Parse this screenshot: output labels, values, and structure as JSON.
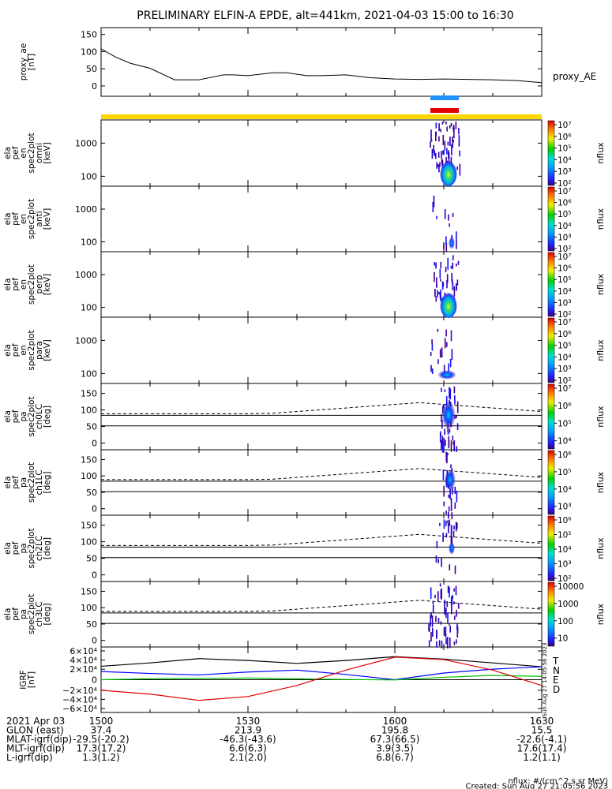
{
  "title": "PRELIMINARY ELFIN-A EPDE, alt=441km, 2021-04-03 15:00 to 16:30",
  "colors": {
    "yellow_bar": "#ffd700",
    "blue_bar": "#1e90ff",
    "red_bar": "#e00000",
    "bx": "#000000",
    "by": "#0000ff",
    "bz": "#00c000",
    "bd": "#e00000"
  },
  "chart_data": [
    {
      "type": "line",
      "ylabel": [
        "proxy_ae",
        "[nT]"
      ],
      "yticks": [
        "150",
        "100",
        "50",
        "0"
      ],
      "ylim": [
        0,
        150
      ],
      "series_name": "proxy_AE",
      "x_minutes": [
        0,
        3,
        6,
        10,
        15,
        20,
        25,
        27,
        30,
        35,
        38,
        42,
        45,
        50,
        55,
        60,
        65,
        70,
        75,
        80,
        85,
        90
      ],
      "values": [
        115,
        95,
        80,
        68,
        40,
        40,
        52,
        52,
        50,
        57,
        57,
        50,
        50,
        52,
        45,
        42,
        41,
        42,
        41,
        40,
        38,
        33
      ]
    },
    {
      "type": "heatmap",
      "ylabel": [
        "ela",
        "pef",
        "en",
        "spec2plot",
        "omni",
        "[keV]"
      ],
      "yticks": [
        "1000",
        "100"
      ],
      "cbar_label": "nflux",
      "cbar_ticks": [
        "10⁷",
        "10⁶",
        "10⁵",
        "10⁴",
        "10³",
        "10²"
      ]
    },
    {
      "type": "heatmap",
      "ylabel": [
        "ela",
        "pef",
        "en",
        "spec2plot",
        "anti",
        "[keV]"
      ],
      "yticks": [
        "1000",
        "100"
      ],
      "cbar_label": "nflux",
      "cbar_ticks": [
        "10⁷",
        "10⁶",
        "10⁵",
        "10⁴",
        "10³",
        "10²"
      ]
    },
    {
      "type": "heatmap",
      "ylabel": [
        "ela",
        "pef",
        "en",
        "spec2plot",
        "perp",
        "[keV]"
      ],
      "yticks": [
        "1000",
        "100"
      ],
      "cbar_label": "nflux",
      "cbar_ticks": [
        "10⁷",
        "10⁶",
        "10⁵",
        "10⁴",
        "10³",
        "10²"
      ]
    },
    {
      "type": "heatmap",
      "ylabel": [
        "ela",
        "pef",
        "en",
        "spec2plot",
        "para",
        "[keV]"
      ],
      "yticks": [
        "1000",
        "100"
      ],
      "cbar_label": "nflux",
      "cbar_ticks": [
        "10⁷",
        "10⁶",
        "10⁵",
        "10⁴",
        "10³",
        "10²"
      ]
    },
    {
      "type": "heatmap",
      "ylabel": [
        "ela",
        "pef",
        "pa",
        "spec2plot",
        "ch0LC",
        "[deg]"
      ],
      "yticks": [
        "150",
        "100",
        "50",
        "0"
      ],
      "cbar_label": "nflux",
      "cbar_ticks": [
        "10⁷",
        "10⁶",
        "10⁵",
        "10⁴"
      ]
    },
    {
      "type": "heatmap",
      "ylabel": [
        "ela",
        "pef",
        "pa",
        "spec2plot",
        "ch1LC",
        "[deg]"
      ],
      "yticks": [
        "150",
        "100",
        "50",
        "0"
      ],
      "cbar_label": "nflux",
      "cbar_ticks": [
        "10⁶",
        "10⁵",
        "10⁴",
        "10³"
      ]
    },
    {
      "type": "heatmap",
      "ylabel": [
        "ela",
        "pef",
        "pa",
        "spec2plot",
        "ch2LC",
        "[deg]"
      ],
      "yticks": [
        "150",
        "100",
        "50",
        "0"
      ],
      "cbar_label": "nflux",
      "cbar_ticks": [
        "10⁶",
        "10⁵",
        "10⁴",
        "10³",
        "10²"
      ]
    },
    {
      "type": "heatmap",
      "ylabel": [
        "ela",
        "pef",
        "pa",
        "spec2plot",
        "ch3LC",
        "[deg]"
      ],
      "yticks": [
        "150",
        "100",
        "50",
        "0"
      ],
      "cbar_label": "nflux",
      "cbar_ticks": [
        "10000",
        "1000",
        "100",
        "10"
      ]
    },
    {
      "type": "line",
      "ylabel": [
        "IGRF",
        "[nT]"
      ],
      "yticks": [
        "6×10⁴",
        "4×10⁴",
        "2×10⁴",
        "0",
        "−2×10⁴",
        "−4×10⁴",
        "−6×10⁴"
      ],
      "ylim": [
        -60000,
        60000
      ],
      "legend": [
        "T",
        "N",
        "E",
        "D"
      ],
      "stamp": "Sun Aug 27 14:05:56 2023",
      "x_minutes": [
        0,
        10,
        20,
        30,
        40,
        50,
        60,
        70,
        80,
        90
      ],
      "series": [
        {
          "name": "T",
          "values": [
            28000,
            35000,
            44000,
            40000,
            34000,
            40000,
            48000,
            43000,
            35000,
            27000
          ]
        },
        {
          "name": "N",
          "values": [
            17000,
            13000,
            10000,
            16000,
            20000,
            11000,
            0,
            14000,
            22000,
            27000
          ]
        },
        {
          "name": "E",
          "values": [
            0,
            2000,
            3000,
            3500,
            2000,
            500,
            -500,
            5000,
            9000,
            7000
          ]
        },
        {
          "name": "D",
          "values": [
            -22000,
            -30000,
            -43000,
            -35000,
            -12000,
            20000,
            47000,
            42000,
            20000,
            -12000
          ]
        }
      ]
    }
  ],
  "xaxis": {
    "x_minutes": [
      0,
      30,
      60,
      90
    ],
    "rows": [
      {
        "label": "2021 Apr 03",
        "values": [
          "1500",
          "1530",
          "1600",
          "1630"
        ]
      },
      {
        "label": "GLON (east)",
        "values": [
          "37.4",
          "213.9",
          "195.8",
          "15.5"
        ]
      },
      {
        "label": "MLAT-igrf(dip)",
        "values": [
          "-29.5(-20.2)",
          "-46.3(-43.6)",
          "67.3(66.5)",
          "-22.6(-4.1)"
        ]
      },
      {
        "label": "MLT-igrf(dip)",
        "values": [
          "17.3(17.2)",
          "6.6(6.3)",
          "3.9(3.5)",
          "17.6(17.4)"
        ]
      },
      {
        "label": "L-igrf(dip)",
        "values": [
          "1.3(1.2)",
          "2.1(2.0)",
          "6.8(6.7)",
          "1.2(1.1)"
        ]
      }
    ]
  },
  "footer": {
    "units": "nflux: #/(cm^2 s sr MeV)",
    "created": "Created: Sun Aug 27 21:05:56 2023"
  }
}
